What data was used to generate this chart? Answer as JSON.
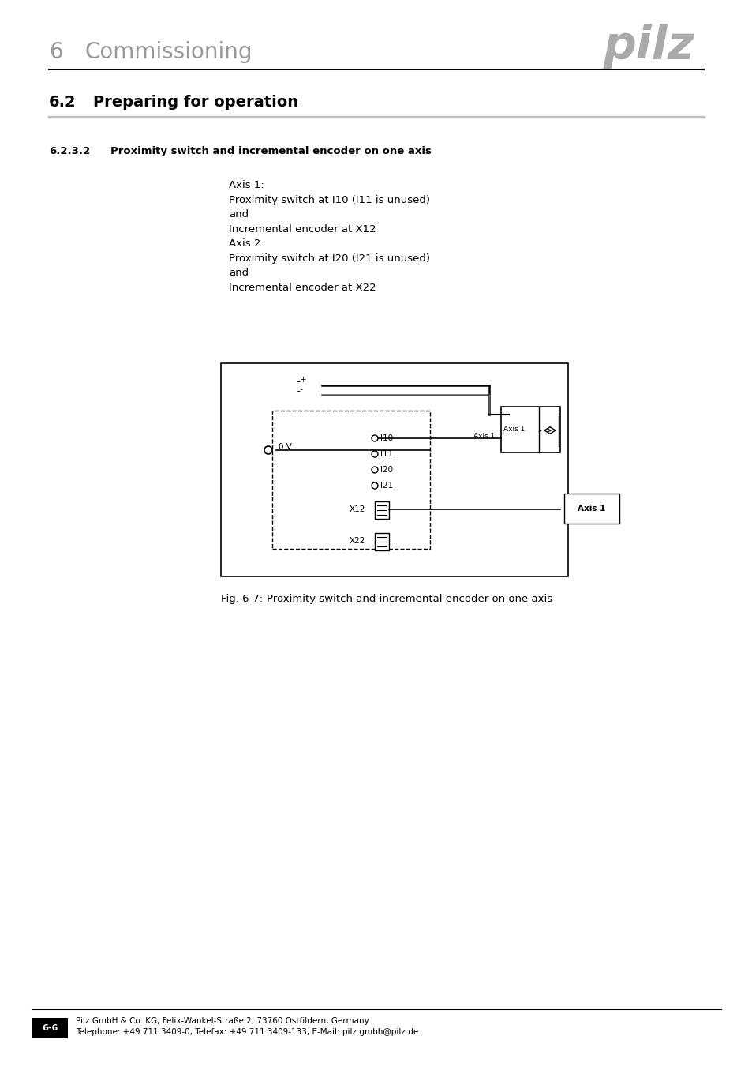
{
  "page_title_num": "6",
  "page_title_text": "Commissioning",
  "logo_text": "pilz",
  "section_num": "6.2",
  "section_text": "Preparing for operation",
  "subsection": "6.2.3.2",
  "subsection_text": "Proximity switch and incremental encoder on one axis",
  "body_lines": [
    "Axis 1:",
    "Proximity switch at I10 (I11 is unused)",
    "and",
    "Incremental encoder at X12",
    "Axis 2:",
    "Proximity switch at I20 (I21 is unused)",
    "and",
    "Incremental encoder at X22"
  ],
  "fig_caption_label": "Fig. 6-7:",
  "fig_caption_text": "Proximity switch and incremental encoder on one axis",
  "footer_line1": "Pilz GmbH & Co. KG, Felix-Wankel-Straße 2, 73760 Ostfildern, Germany",
  "footer_line2": "Telephone: +49 711 3409-0, Telefax: +49 711 3409-133, E-Mail: pilz.gmbh@pilz.de",
  "footer_page": "6-6",
  "bg_color": "#ffffff",
  "text_color": "#000000",
  "header_gray": "#999999",
  "logo_gray": "#aaaaaa",
  "rule_color": "#000000",
  "section_rule_color": "#cccccc"
}
